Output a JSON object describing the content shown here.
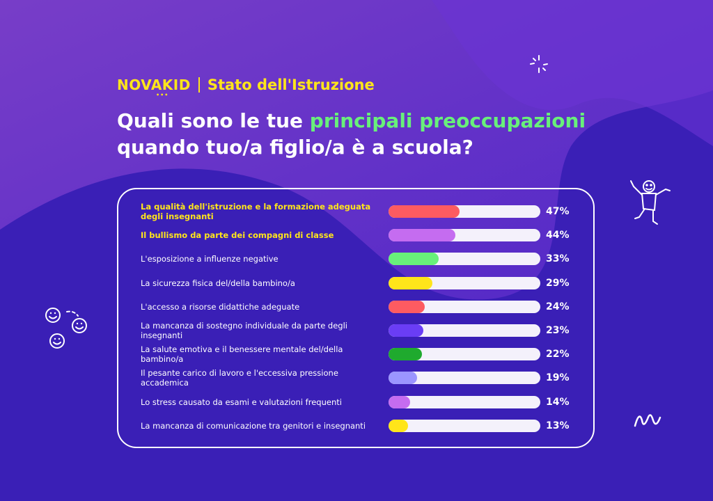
{
  "brand": {
    "logo": "NOVAKID",
    "logo_dots": "•••",
    "subtitle": "Stato dell'Istruzione"
  },
  "headline": {
    "part1": "Quali sono le tue ",
    "highlight": "principali preoccupazioni",
    "part2": "quando tuo/a figlio/a è a scuola?"
  },
  "colors": {
    "background": "#3a1fb6",
    "accent_yellow": "#ffe51a",
    "accent_green": "#68f07a",
    "track": "#f4f1fb"
  },
  "decorations": [
    "sparkle-icon",
    "stick-figure-icon",
    "smiley-faces-icon",
    "squiggle-icon"
  ],
  "chart_data": {
    "type": "bar",
    "orientation": "horizontal",
    "unit": "%",
    "xlim": [
      0,
      100
    ],
    "categories": [
      "La qualità dell'istruzione e la formazione adeguata degli insegnanti",
      "Il bullismo da parte dei compagni di classe",
      "L'esposizione a influenze negative",
      "La sicurezza fisica del/della bambino/a",
      "L'accesso a risorse didattiche adeguate",
      "La mancanza di sostegno individuale da parte degli insegnanti",
      "La salute emotiva e il benessere mentale del/della bambino/a",
      "Il pesante carico di lavoro e l'eccessiva pressione accademica",
      "Lo stress causato da esami e valutazioni frequenti",
      "La mancanza di comunicazione tra genitori e insegnanti"
    ],
    "values": [
      47,
      44,
      33,
      29,
      24,
      23,
      22,
      19,
      14,
      13
    ],
    "labels": [
      "47%",
      "44%",
      "33%",
      "29%",
      "24%",
      "23%",
      "22%",
      "19%",
      "14%",
      "13%"
    ],
    "bar_colors": [
      "#fd5b61",
      "#c56cf0",
      "#68f07a",
      "#ffe51a",
      "#fd5b61",
      "#6a3df5",
      "#1faa2e",
      "#9b95ff",
      "#c56cf0",
      "#ffe51a"
    ],
    "highlighted": [
      true,
      true,
      false,
      false,
      false,
      false,
      false,
      false,
      false,
      false
    ]
  }
}
